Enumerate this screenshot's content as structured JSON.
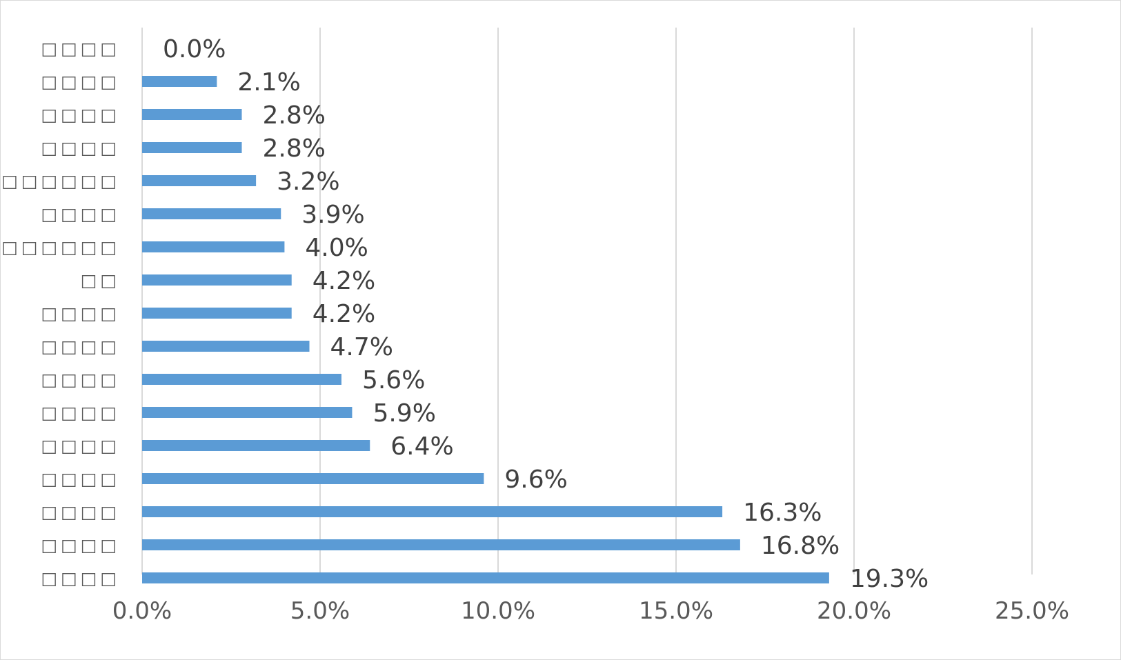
{
  "chart_data": {
    "type": "bar",
    "orientation": "horizontal",
    "title": "",
    "xlabel": "",
    "ylabel": "",
    "categories": [
      "□□□□",
      "□□□□",
      "□□□□",
      "□□□□",
      "□□□□□□□",
      "□□□□",
      "□□□□□□",
      "□□",
      "□□□□",
      "□□□□",
      "□□□□",
      "□□□□",
      "□□□□",
      "□□□□",
      "□□□□",
      "□□□□",
      "□□□□"
    ],
    "values": [
      0.0,
      2.1,
      2.8,
      2.8,
      3.2,
      3.9,
      4.0,
      4.2,
      4.2,
      4.7,
      5.6,
      5.9,
      6.4,
      9.6,
      16.3,
      16.8,
      19.3
    ],
    "data_labels": [
      "0.0%",
      "2.1%",
      "2.8%",
      "2.8%",
      "3.2%",
      "3.9%",
      "4.0%",
      "4.2%",
      "4.2%",
      "4.7%",
      "5.6%",
      "5.9%",
      "6.4%",
      "9.6%",
      "16.3%",
      "16.8%",
      "19.3%"
    ],
    "x_ticks": [
      0,
      5,
      10,
      15,
      20,
      25
    ],
    "x_tick_labels": [
      "0.0%",
      "5.0%",
      "10.0%",
      "15.0%",
      "20.0%",
      "25.0%"
    ],
    "xlim": [
      0,
      25
    ],
    "grid": true,
    "legend": "none",
    "bar_color": "#5b9bd5",
    "grid_color": "#d9d9d9"
  }
}
